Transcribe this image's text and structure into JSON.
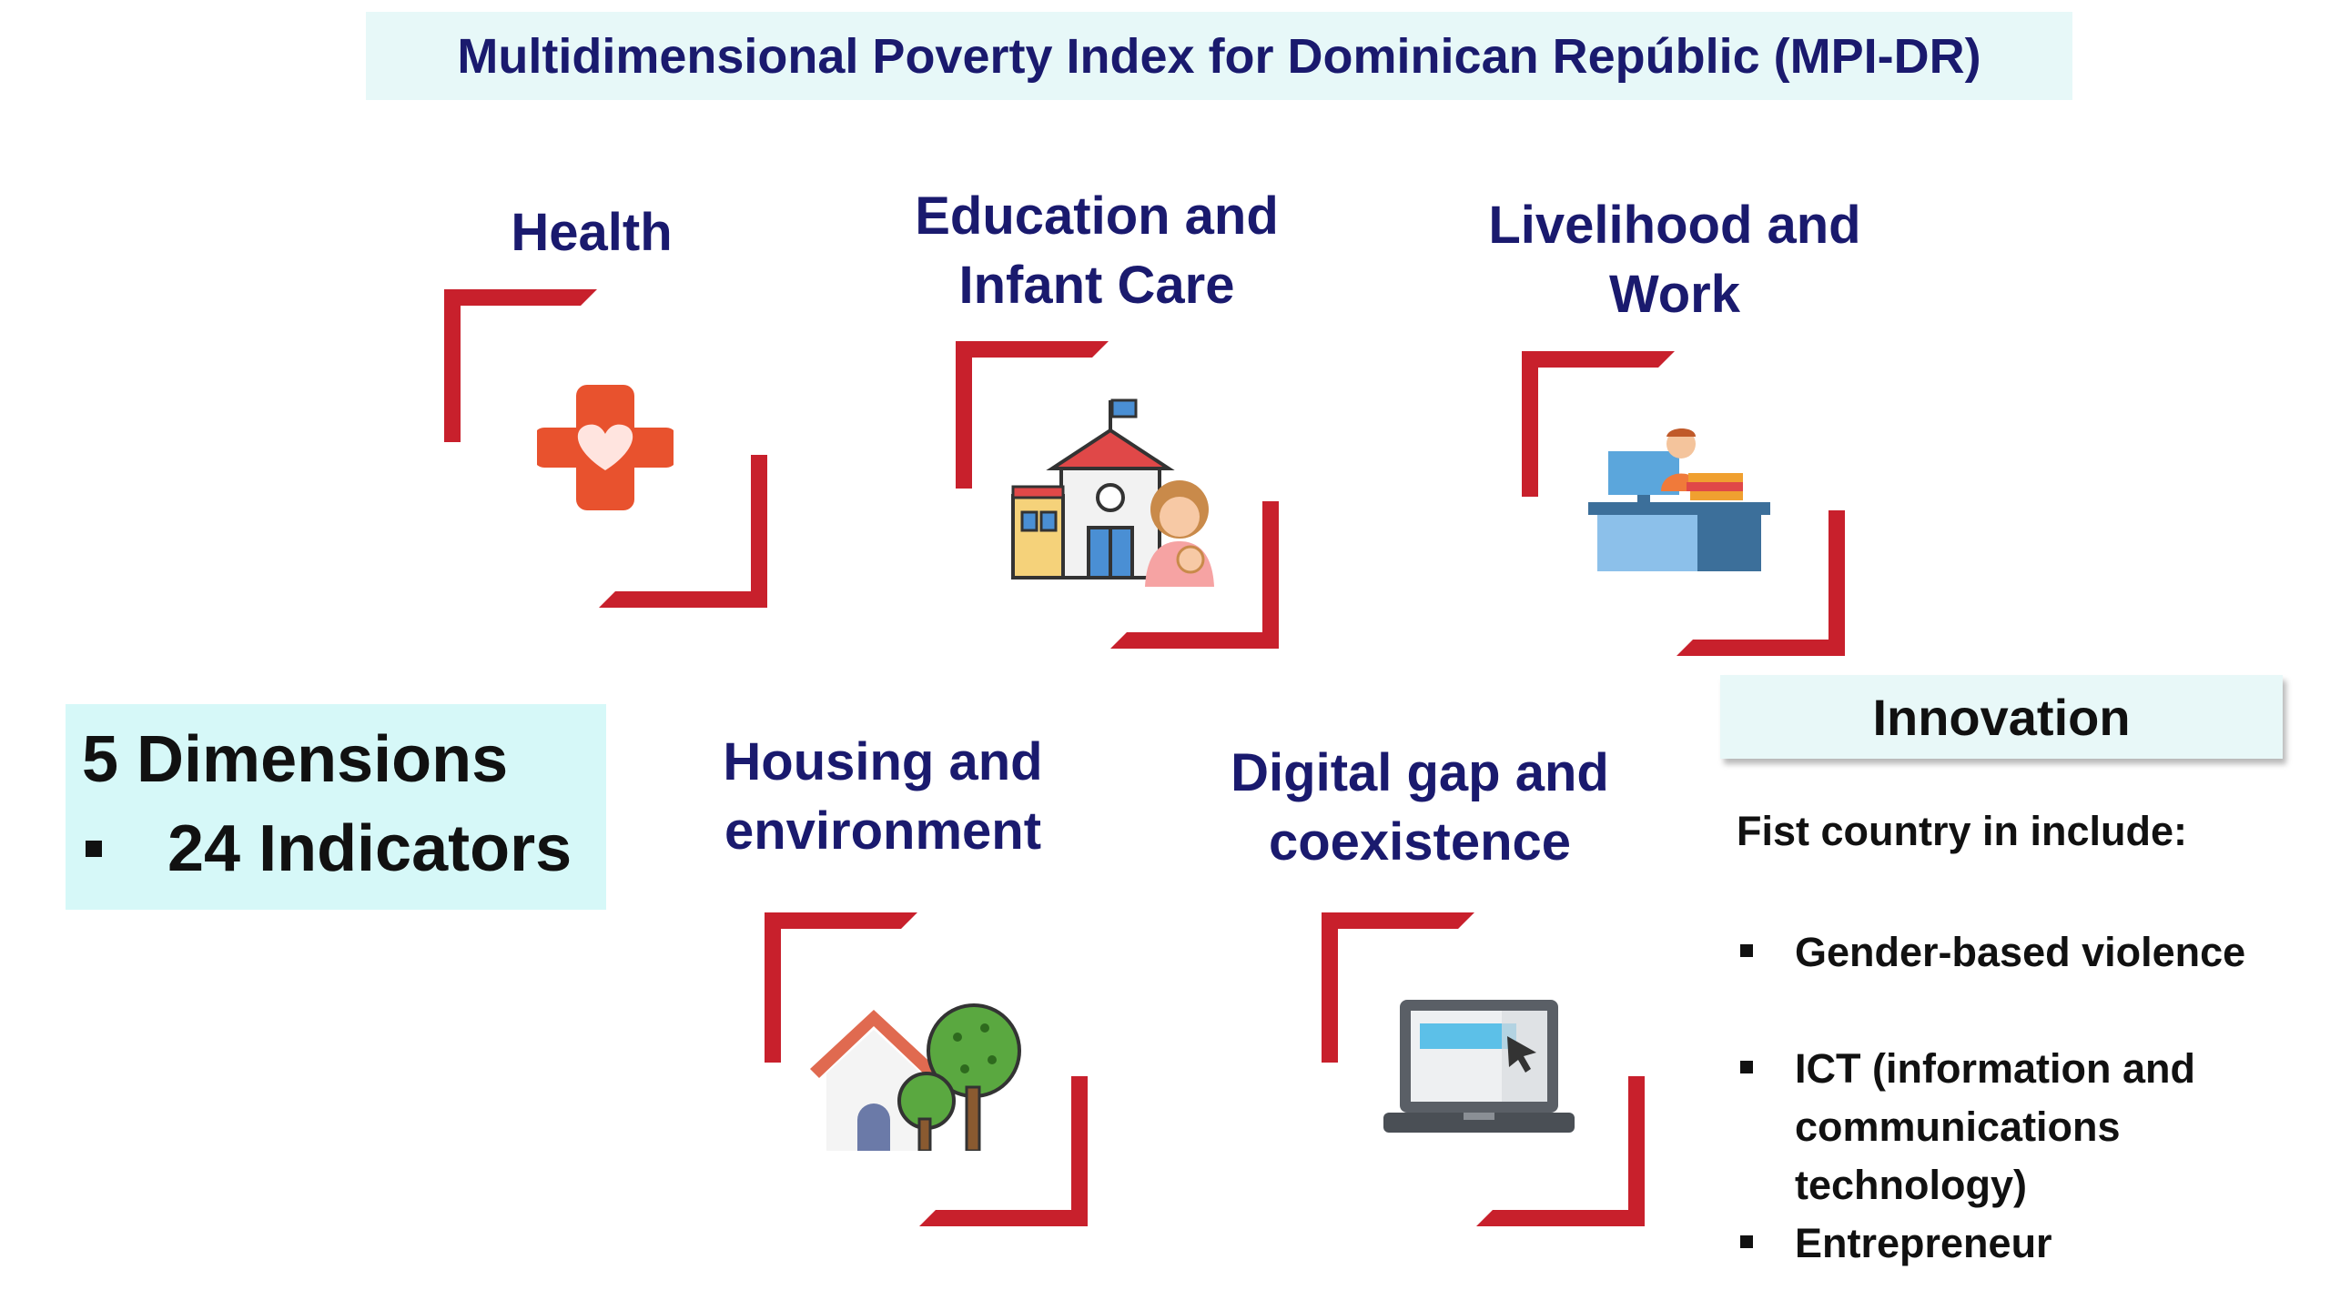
{
  "title": "Multidimensional Poverty Index for Dominican Repúblic (MPI-DR)",
  "dimensions": [
    {
      "lines": [
        "Health"
      ],
      "icon": "health-cross-heart-icon"
    },
    {
      "lines": [
        "Education and",
        "Infant Care"
      ],
      "icon": "school-mother-child-icon"
    },
    {
      "lines": [
        "Livelihood and",
        "Work"
      ],
      "icon": "office-worker-desk-icon"
    },
    {
      "lines": [
        "Housing and",
        "environment"
      ],
      "icon": "house-trees-icon"
    },
    {
      "lines": [
        "Digital gap and",
        "coexistence"
      ],
      "icon": "laptop-cursor-icon"
    }
  ],
  "summary": {
    "dimensions": "5 Dimensions",
    "indicators": "24 Indicators"
  },
  "innovation": {
    "title": "Innovation",
    "intro": "Fist country in include:",
    "items": [
      [
        "Gender-based violence"
      ],
      [
        "ICT (information and",
        "communications",
        "technology)"
      ],
      [
        "Entrepreneur"
      ]
    ]
  },
  "colors": {
    "title_text": "#1a1a6e",
    "frame_red": "#c8202c",
    "title_bg": "#e7f8f8",
    "summary_bg": "#d6f8f8"
  }
}
